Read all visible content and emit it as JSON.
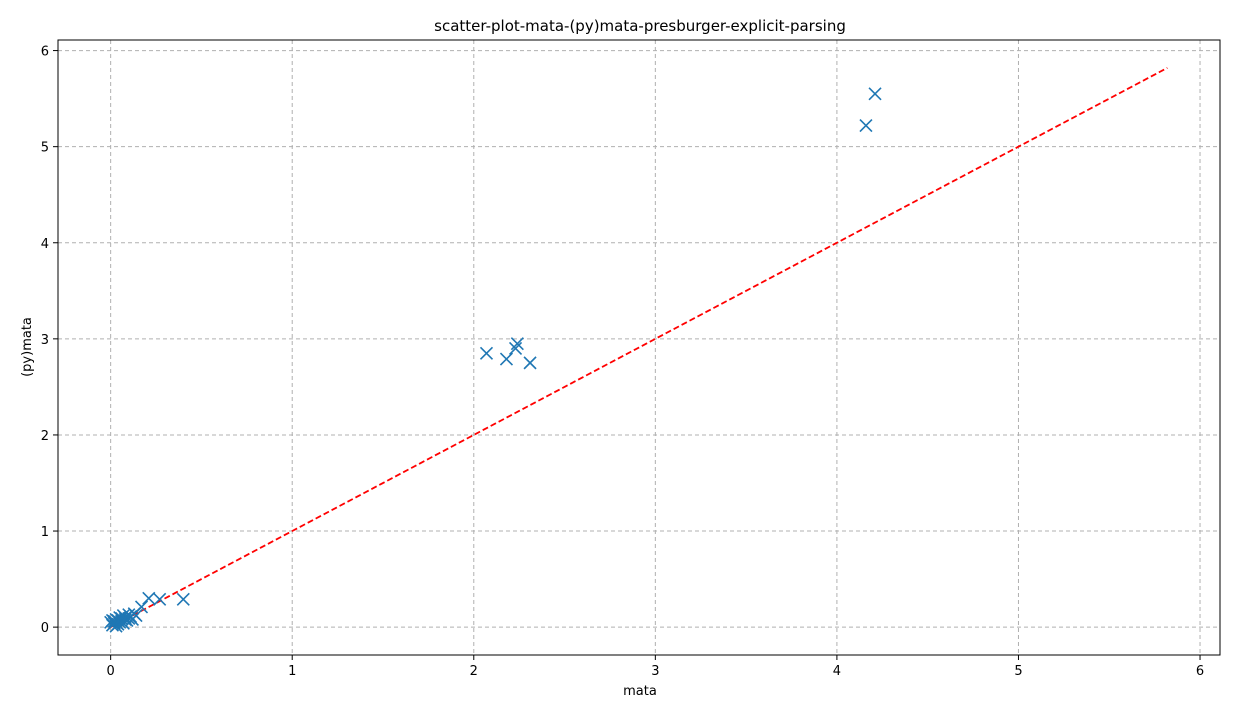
{
  "chart_data": {
    "type": "scatter",
    "title": "scatter-plot-mata-(py)mata-presburger-explicit-parsing",
    "xlabel": "mata",
    "ylabel": "(py)mata",
    "xlim": [
      -0.29,
      6.11
    ],
    "ylim": [
      -0.29,
      6.11
    ],
    "xticks": [
      0,
      1,
      2,
      3,
      4,
      5,
      6
    ],
    "yticks": [
      0,
      1,
      2,
      3,
      4,
      5,
      6
    ],
    "grid": true,
    "marker": "x",
    "colors": {
      "points": "#1f77b4",
      "reference_line": "#ff0000",
      "grid": "#b0b0b0"
    },
    "reference_line": {
      "style": "dashed",
      "x": [
        -0.01,
        5.82
      ],
      "y": [
        -0.01,
        5.82
      ]
    },
    "series": [
      {
        "x": [
          0.0,
          0.01,
          0.01,
          0.02,
          0.02,
          0.03,
          0.03,
          0.04,
          0.04,
          0.05,
          0.05,
          0.06,
          0.06,
          0.07,
          0.07,
          0.08,
          0.08,
          0.09,
          0.1,
          0.1,
          0.11,
          0.12,
          0.13,
          0.14,
          0.17,
          0.21,
          0.27,
          0.4,
          2.07,
          2.18,
          2.23,
          2.24,
          2.31,
          4.16,
          4.21
        ],
        "y": [
          0.05,
          0.02,
          0.07,
          0.04,
          0.06,
          0.01,
          0.08,
          0.03,
          0.07,
          0.05,
          0.1,
          0.06,
          0.09,
          0.04,
          0.12,
          0.08,
          0.1,
          0.07,
          0.13,
          0.09,
          0.11,
          0.08,
          0.14,
          0.12,
          0.21,
          0.3,
          0.29,
          0.29,
          2.85,
          2.79,
          2.9,
          2.95,
          2.75,
          5.22,
          5.55
        ]
      }
    ]
  }
}
